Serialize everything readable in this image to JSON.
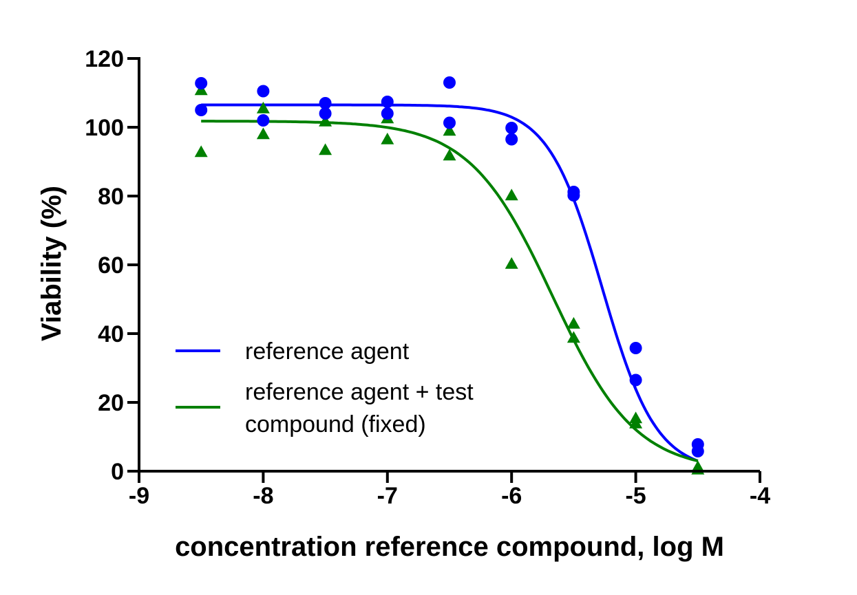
{
  "chart_data": {
    "type": "scatter",
    "title": "",
    "xlabel": "concentration reference compound, log M",
    "ylabel": "Viability (%)",
    "xlim": [
      -9,
      -4
    ],
    "ylim": [
      0,
      120
    ],
    "xticks": [
      -9,
      -8,
      -7,
      -6,
      -5,
      -4
    ],
    "yticks": [
      0,
      20,
      40,
      60,
      80,
      100,
      120
    ],
    "xtick_labels": [
      "-9",
      "-8",
      "-7",
      "-6",
      "-5",
      "-4"
    ],
    "ytick_labels": [
      "0",
      "20",
      "40",
      "60",
      "80",
      "100",
      "120"
    ],
    "grid": false,
    "legend_position": "lower-left",
    "series": [
      {
        "name": "reference agent",
        "color": "#0000ff",
        "marker": "circle",
        "points": [
          [
            -8.5,
            112.8
          ],
          [
            -8.5,
            105.0
          ],
          [
            -8.0,
            110.5
          ],
          [
            -8.0,
            102.0
          ],
          [
            -7.5,
            107.0
          ],
          [
            -7.5,
            104.0
          ],
          [
            -7.0,
            107.4
          ],
          [
            -7.0,
            104.0
          ],
          [
            -6.5,
            113.0
          ],
          [
            -6.5,
            101.3
          ],
          [
            -6.0,
            99.8
          ],
          [
            -6.0,
            96.5
          ],
          [
            -5.5,
            81.2
          ],
          [
            -5.5,
            80.2
          ],
          [
            -5.0,
            35.8
          ],
          [
            -5.0,
            26.5
          ],
          [
            -4.5,
            7.8
          ],
          [
            -4.5,
            5.8
          ]
        ],
        "fit": {
          "top": 106.5,
          "bottom": 0,
          "logEC50": -5.27,
          "hill": 2.0,
          "x_range": [
            -8.5,
            -4.5
          ]
        }
      },
      {
        "name": "reference agent + test compound (fixed)",
        "color": "#008000",
        "marker": "triangle",
        "points": [
          [
            -8.5,
            110.8
          ],
          [
            -8.5,
            92.8
          ],
          [
            -8.0,
            105.5
          ],
          [
            -8.0,
            98.0
          ],
          [
            -7.5,
            101.7
          ],
          [
            -7.5,
            93.4
          ],
          [
            -7.0,
            102.6
          ],
          [
            -7.0,
            96.5
          ],
          [
            -6.5,
            99.0
          ],
          [
            -6.5,
            91.8
          ],
          [
            -6.0,
            80.2
          ],
          [
            -6.0,
            60.3
          ],
          [
            -5.5,
            42.9
          ],
          [
            -5.5,
            38.8
          ],
          [
            -5.0,
            15.4
          ],
          [
            -5.0,
            13.9
          ],
          [
            -4.5,
            1.2
          ],
          [
            -4.5,
            0.5
          ]
        ],
        "fit": {
          "top": 101.8,
          "bottom": 0,
          "logEC50": -5.67,
          "hill": 1.3,
          "x_range": [
            -8.5,
            -4.5
          ]
        }
      }
    ],
    "legend": {
      "entries": [
        {
          "lines": [
            "reference agent"
          ],
          "color": "#0000ff"
        },
        {
          "lines": [
            "reference agent + test",
            "compound (fixed)"
          ],
          "color": "#008000"
        }
      ]
    }
  }
}
